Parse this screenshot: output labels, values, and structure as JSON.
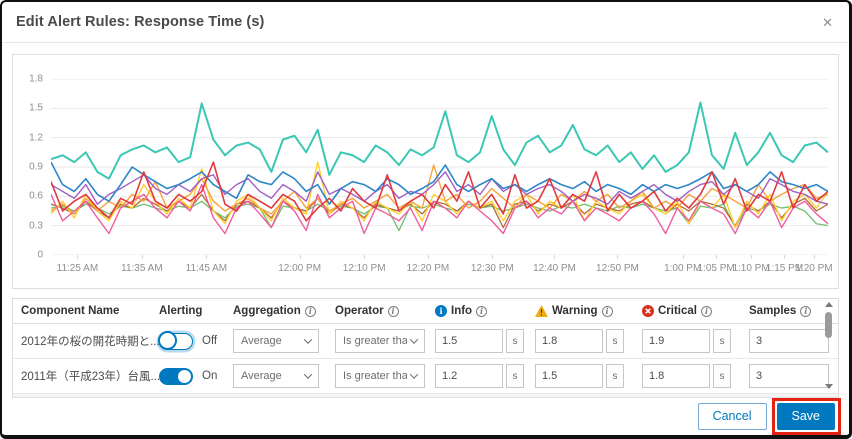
{
  "dialog": {
    "title": "Edit Alert Rules: Response Time (s)",
    "close_icon": "✕"
  },
  "chart_data": {
    "type": "line",
    "title": "Response Time (s)",
    "ylim": [
      0,
      1.8
    ],
    "y_ticks": [
      "1.8",
      "1.5",
      "1.2",
      "0.9",
      "0.6",
      "0.3",
      "0"
    ],
    "grid": true,
    "legend": "none",
    "x_ticks": [
      {
        "label": "11:25 AM",
        "pos": 3.4
      },
      {
        "label": "11:35 AM",
        "pos": 11.7
      },
      {
        "label": "11:45 AM",
        "pos": 20.0
      },
      {
        "label": "12:00 PM",
        "pos": 32.0
      },
      {
        "label": "12:10 PM",
        "pos": 40.3
      },
      {
        "label": "12:20 PM",
        "pos": 48.5
      },
      {
        "label": "12:30 PM",
        "pos": 56.8
      },
      {
        "label": "12:40 PM",
        "pos": 64.8
      },
      {
        "label": "12:50 PM",
        "pos": 72.9
      },
      {
        "label": "1:00 PM",
        "pos": 81.3
      },
      {
        "label": "1:05 PM",
        "pos": 85.6
      },
      {
        "label": "1:10 PM",
        "pos": 90.1
      },
      {
        "label": "1:15 PM",
        "pos": 94.4
      },
      {
        "label": "1:20 PM",
        "pos": 98.2
      }
    ],
    "series": [
      {
        "name": "green",
        "color": "#71bf6f",
        "width": 1.3,
        "values": [
          0.48,
          0.5,
          0.45,
          0.52,
          0.48,
          0.42,
          0.5,
          0.48,
          0.52,
          0.48,
          0.45,
          0.5,
          0.48,
          0.55,
          0.45,
          0.38,
          0.5,
          0.52,
          0.48,
          0.28,
          0.5,
          0.48,
          0.45,
          0.52,
          0.45,
          0.5,
          0.48,
          0.42,
          0.5,
          0.48,
          0.25,
          0.5,
          0.48,
          0.52,
          0.48,
          0.45,
          0.52,
          0.48,
          0.5,
          0.45,
          0.48,
          0.52,
          0.48,
          0.45,
          0.5,
          0.48,
          0.52,
          0.48,
          0.45,
          0.5,
          0.48,
          0.52,
          0.48,
          0.45,
          0.48,
          0.32,
          0.5,
          0.48,
          0.52,
          0.28,
          0.48,
          0.45,
          0.52,
          0.48,
          0.5,
          0.45,
          0.32,
          0.3
        ]
      },
      {
        "name": "brown",
        "color": "#b06a35",
        "width": 1.3,
        "values": [
          0.52,
          0.48,
          0.42,
          0.55,
          0.45,
          0.38,
          0.52,
          0.48,
          0.58,
          0.52,
          0.45,
          0.55,
          0.48,
          0.62,
          0.45,
          0.35,
          0.52,
          0.55,
          0.48,
          0.38,
          0.55,
          0.48,
          0.45,
          0.58,
          0.42,
          0.52,
          0.48,
          0.38,
          0.52,
          0.48,
          0.45,
          0.52,
          0.42,
          0.55,
          0.52,
          0.45,
          0.55,
          0.48,
          0.52,
          0.28,
          0.52,
          0.55,
          0.45,
          0.52,
          0.48,
          0.55,
          0.42,
          0.52,
          0.48,
          0.45,
          0.52,
          0.55,
          0.48,
          0.42,
          0.52,
          0.45,
          0.55,
          0.52,
          0.48,
          0.3,
          0.52,
          0.45,
          0.55,
          0.38,
          0.52,
          0.58,
          0.45,
          0.52
        ]
      },
      {
        "name": "yellow",
        "color": "#ffd02e",
        "width": 1.4,
        "values": [
          0.42,
          0.55,
          0.38,
          0.62,
          0.45,
          0.35,
          0.55,
          0.48,
          0.72,
          0.55,
          0.42,
          0.58,
          0.48,
          0.88,
          0.45,
          0.32,
          0.55,
          0.62,
          0.48,
          0.35,
          0.58,
          0.48,
          0.42,
          0.95,
          0.42,
          0.55,
          0.48,
          0.35,
          0.55,
          0.48,
          0.42,
          0.55,
          0.35,
          0.62,
          0.55,
          0.42,
          0.55,
          0.48,
          0.55,
          0.35,
          0.55,
          0.62,
          0.42,
          0.55,
          0.48,
          0.62,
          0.35,
          0.55,
          0.48,
          0.42,
          0.55,
          0.62,
          0.48,
          0.42,
          0.55,
          0.32,
          0.55,
          0.48,
          0.62,
          0.28,
          0.55,
          0.42,
          0.62,
          0.35,
          0.55,
          0.62,
          0.48,
          0.65
        ]
      },
      {
        "name": "orange",
        "color": "#f4a43c",
        "width": 1.4,
        "values": [
          0.45,
          0.52,
          0.42,
          0.58,
          0.45,
          0.55,
          0.48,
          0.62,
          0.55,
          0.75,
          0.48,
          0.55,
          0.62,
          0.78,
          0.55,
          0.45,
          0.52,
          0.58,
          0.48,
          0.42,
          0.55,
          0.65,
          0.48,
          0.58,
          0.45,
          0.52,
          0.58,
          0.48,
          0.55,
          0.62,
          0.48,
          0.55,
          0.48,
          0.92,
          0.55,
          0.62,
          0.48,
          0.55,
          0.68,
          0.58,
          0.48,
          0.62,
          0.55,
          0.48,
          0.62,
          0.55,
          0.65,
          0.55,
          0.62,
          0.48,
          0.55,
          0.65,
          0.48,
          0.55,
          0.48,
          0.62,
          0.55,
          0.68,
          0.62,
          0.55,
          0.48,
          0.72,
          0.55,
          0.62,
          0.68,
          0.72,
          0.58,
          0.62
        ]
      },
      {
        "name": "purple",
        "color": "#a05fc4",
        "width": 1.4,
        "values": [
          0.72,
          0.65,
          0.58,
          0.72,
          0.52,
          0.62,
          0.68,
          0.75,
          0.82,
          0.68,
          0.62,
          0.72,
          0.65,
          0.78,
          0.82,
          0.62,
          0.72,
          0.78,
          0.65,
          0.58,
          0.72,
          0.65,
          0.55,
          0.85,
          0.62,
          0.68,
          0.62,
          0.55,
          0.65,
          0.72,
          0.58,
          0.65,
          0.62,
          0.72,
          0.85,
          0.65,
          0.72,
          0.62,
          0.78,
          0.65,
          0.72,
          0.62,
          0.68,
          0.72,
          0.65,
          0.55,
          0.62,
          0.58,
          0.52,
          0.65,
          0.58,
          0.65,
          0.72,
          0.62,
          0.55,
          0.65,
          0.72,
          0.75,
          0.62,
          0.72,
          0.65,
          0.58,
          0.78,
          0.72,
          0.65,
          0.62,
          0.55,
          0.52
        ]
      },
      {
        "name": "pink",
        "color": "#f05ba2",
        "width": 1.4,
        "values": [
          0.62,
          0.35,
          0.45,
          0.55,
          0.38,
          0.22,
          0.48,
          0.55,
          0.62,
          0.48,
          0.38,
          0.55,
          0.45,
          0.72,
          0.38,
          0.22,
          0.48,
          0.55,
          0.42,
          0.28,
          0.55,
          0.45,
          0.25,
          0.62,
          0.38,
          0.48,
          0.55,
          0.22,
          0.48,
          0.42,
          0.35,
          0.48,
          0.25,
          0.55,
          0.48,
          0.38,
          0.55,
          0.45,
          0.35,
          0.22,
          0.48,
          0.55,
          0.38,
          0.48,
          0.42,
          0.55,
          0.35,
          0.48,
          0.42,
          0.35,
          0.48,
          0.55,
          0.42,
          0.22,
          0.48,
          0.35,
          0.55,
          0.48,
          0.42,
          0.22,
          0.48,
          0.38,
          0.55,
          0.28,
          0.48,
          0.55,
          0.42,
          0.32
        ]
      },
      {
        "name": "blue",
        "color": "#2e86c8",
        "width": 1.6,
        "values": [
          0.95,
          0.72,
          0.65,
          0.78,
          0.62,
          0.55,
          0.72,
          0.9,
          0.82,
          0.75,
          0.68,
          0.72,
          0.78,
          0.85,
          0.72,
          0.65,
          0.58,
          0.82,
          0.75,
          0.72,
          0.85,
          0.78,
          0.65,
          0.72,
          0.52,
          0.68,
          0.75,
          0.72,
          0.65,
          0.78,
          0.72,
          0.62,
          0.68,
          0.75,
          0.92,
          0.72,
          0.65,
          0.72,
          0.78,
          0.68,
          0.72,
          0.65,
          0.72,
          0.78,
          0.72,
          0.68,
          0.75,
          0.65,
          0.72,
          0.68,
          0.62,
          0.72,
          0.65,
          0.72,
          0.68,
          0.72,
          0.78,
          0.85,
          0.68,
          0.72,
          0.65,
          0.72,
          0.85,
          0.75,
          0.72,
          0.68,
          0.72,
          0.65
        ]
      },
      {
        "name": "red",
        "color": "#e0393f",
        "width": 1.6,
        "values": [
          0.75,
          0.45,
          0.55,
          0.62,
          0.48,
          0.38,
          0.58,
          0.52,
          0.85,
          0.55,
          0.48,
          0.62,
          0.55,
          0.65,
          0.95,
          0.52,
          0.45,
          0.62,
          0.55,
          0.48,
          0.62,
          0.55,
          0.35,
          0.48,
          0.58,
          0.45,
          0.68,
          0.55,
          0.48,
          0.82,
          0.45,
          0.55,
          0.62,
          0.48,
          0.72,
          0.55,
          0.85,
          0.48,
          0.62,
          0.42,
          0.82,
          0.48,
          0.55,
          0.78,
          0.48,
          0.62,
          0.55,
          0.85,
          0.45,
          0.62,
          0.48,
          0.55,
          0.65,
          0.45,
          0.58,
          0.48,
          0.62,
          0.85,
          0.52,
          0.78,
          0.45,
          0.62,
          0.55,
          0.85,
          0.48,
          0.72,
          0.55,
          0.65
        ]
      },
      {
        "name": "teal",
        "color": "#3bc7b4",
        "width": 2,
        "values": [
          0.98,
          1.02,
          0.95,
          1.05,
          0.85,
          0.78,
          1.02,
          1.08,
          1.12,
          1.05,
          1.1,
          0.95,
          1.0,
          1.55,
          1.18,
          1.02,
          1.12,
          1.15,
          1.08,
          0.85,
          1.18,
          1.22,
          1.05,
          1.28,
          0.82,
          1.05,
          1.02,
          0.95,
          1.12,
          1.05,
          0.92,
          1.08,
          1.02,
          1.1,
          1.47,
          1.02,
          0.95,
          1.05,
          1.42,
          1.08,
          0.92,
          1.15,
          1.22,
          1.05,
          1.12,
          1.33,
          1.08,
          1.02,
          1.12,
          0.95,
          1.05,
          0.88,
          1.02,
          0.85,
          0.92,
          1.05,
          1.56,
          1.02,
          0.88,
          1.25,
          0.92,
          1.05,
          1.25,
          1.02,
          0.95,
          1.12,
          1.15,
          1.05
        ]
      }
    ]
  },
  "table": {
    "headers": {
      "component": "Component Name",
      "alerting": "Alerting",
      "aggregation": "Aggregation",
      "operator": "Operator",
      "info": "Info",
      "warning": "Warning",
      "critical": "Critical",
      "samples": "Samples"
    },
    "unit": "s",
    "rows": [
      {
        "component": "2012年の桜の開花時期と...",
        "alerting": "Off",
        "aggregation": "Average",
        "operator": "Is greater than",
        "info": "1.5",
        "warning": "1.8",
        "critical": "1.9",
        "samples": "3"
      },
      {
        "component": "2011年（平成23年）台風...",
        "alerting": "On",
        "aggregation": "Average",
        "operator": "Is greater than",
        "info": "1.2",
        "warning": "1.5",
        "critical": "1.8",
        "samples": "3"
      }
    ]
  },
  "footer": {
    "cancel_label": "Cancel",
    "save_label": "Save"
  }
}
